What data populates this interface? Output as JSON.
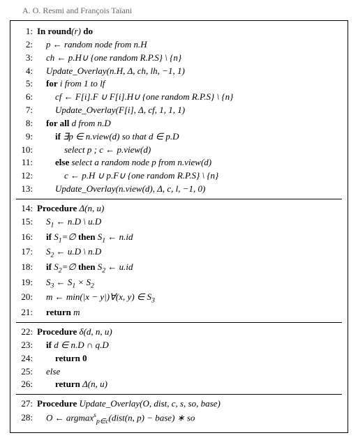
{
  "header": "A. O. Resmi and François Taïani",
  "blocks": [
    {
      "lines": [
        {
          "n": "1:",
          "html": "<span class='kw'>In round</span>(<i>r</i>) <span class='kw'>do</span>"
        },
        {
          "n": "2:",
          "html": "    <i>p</i> ← random node from <i>n</i>.<span class='cal'>H</span>"
        },
        {
          "n": "3:",
          "html": "    <i>ch</i> ← <i>p</i>.<span class='cal'>H</span>∪ {one random R.P.S} \\ {<i>n</i>}"
        },
        {
          "n": "4:",
          "html": "    <i>Update_Overlay</i>(<i>n</i>.<span class='cal'>H</span>, Δ, <i>ch</i>, <i>lh</i>, −1, 1)"
        },
        {
          "n": "5:",
          "html": "    <span class='kw'>for</span> <i>i</i> from 1 to <i>lf</i>"
        },
        {
          "n": "6:",
          "html": "        <i>cf</i> ← <i>F</i>[<i>i</i>].<span class='cal'>F</span> ∪ <i>F</i>[<i>i</i>].<span class='cal'>H</span>∪ {one random R.P.S} \\ {<i>n</i>}"
        },
        {
          "n": "7:",
          "html": "        <i>Update_Overlay</i>(<i>F</i>[<i>i</i>], Δ, <i>cf</i>, 1, 1, 1)"
        },
        {
          "n": "8:",
          "html": "    <span class='kw'>for all</span> <i>d</i> from <i>n</i>.<span class='cal'>D</span>"
        },
        {
          "n": "9:",
          "html": "        <span class='kw'>if</span> ∃<i>p</i> ∈ <i>n.view</i>(<i>d</i>) so that <i>d</i> ∈ <i>p</i>.<span class='cal'>D</span>"
        },
        {
          "n": "10:",
          "html": "            select <i>p</i> ; <i>c</i> ← <i>p.view</i>(<i>d</i>)"
        },
        {
          "n": "11:",
          "html": "        <span class='kw'>else</span> select a random node <i>p</i> from <i>n.view</i>(<i>d</i>)"
        },
        {
          "n": "12:",
          "html": "            <i>c</i> ← <i>p</i>.<span class='cal'>H</span> ∪ <i>p</i>.<span class='cal'>F</span>∪ {one random R.P.S} \\ {<i>n</i>}"
        },
        {
          "n": "13:",
          "html": "        <i>Update_Overlay</i>(<i>n.view</i>(<i>d</i>), Δ, <i>c</i>, <i>l</i>, −1, 0)"
        }
      ]
    },
    {
      "lines": [
        {
          "n": "14:",
          "html": "<span class='kw'>Procedure</span> Δ(<i>n</i>, <i>u</i>)"
        },
        {
          "n": "15:",
          "html": "    <i>S</i><sub>1</sub> ← <i>n</i>.<span class='cal'>D</span> \\ <i>u</i>.<span class='cal'>D</span>"
        },
        {
          "n": "16:",
          "html": "    <span class='kw'>if</span> <i>S</i><sub>1</sub>=∅ <span class='kw'>then</span> <i>S</i><sub>1</sub> ← <i>n.id</i>"
        },
        {
          "n": "17:",
          "html": "    <i>S</i><sub>2</sub> ← <i>u</i>.<span class='cal'>D</span> \\ <i>n</i>.<span class='cal'>D</span>"
        },
        {
          "n": "18:",
          "html": "    <span class='kw'>if</span> <i>S</i><sub>2</sub>=∅ <span class='kw'>then</span> <i>S</i><sub>2</sub> ← <i>u.id</i>"
        },
        {
          "n": "19:",
          "html": "    <i>S</i><sub>3</sub> ← <i>S</i><sub>1</sub> × <i>S</i><sub>2</sub>"
        },
        {
          "n": "20:",
          "html": "    <i>m</i> ← <i>min</i>(|<i>x</i> − <i>y</i>|)∀(<i>x</i>, <i>y</i>) ∈ <i>S</i><sub>3</sub>"
        },
        {
          "n": "21:",
          "html": "    <span class='kw'>return</span> <i>m</i>"
        }
      ]
    },
    {
      "lines": [
        {
          "n": "22:",
          "html": "<span class='kw'>Procedure</span> δ(<i>d</i>, <i>n</i>, <i>u</i>)"
        },
        {
          "n": "23:",
          "html": "    <span class='kw'>if</span> <i>d</i> ∈ <i>n</i>.<span class='cal'>D</span> ∩ <i>q</i>.<span class='cal'>D</span>"
        },
        {
          "n": "24:",
          "html": "        <span class='kw'>return 0</span>"
        },
        {
          "n": "25:",
          "html": "    else"
        },
        {
          "n": "26:",
          "html": "        <span class='kw'>return</span> Δ(<i>n</i>, <i>u</i>)"
        }
      ]
    },
    {
      "lines": [
        {
          "n": "27:",
          "html": "<span class='kw'>Procedure</span> <i>Update_Overlay</i>(<i>O</i>, <i>dist</i>, <i>c</i>, <i>s</i>, <i>so</i>, <i>base</i>)"
        },
        {
          "n": "28:",
          "html": "    <i>O</i> ← <i>argmax</i><sup><i>s</i></sup><sub><i>p</i>∈<i>c</i></sub>(<i>dist</i>(<i>n</i>, <i>p</i>) − <i>base</i>) ∗ <i>so</i>"
        }
      ]
    }
  ]
}
